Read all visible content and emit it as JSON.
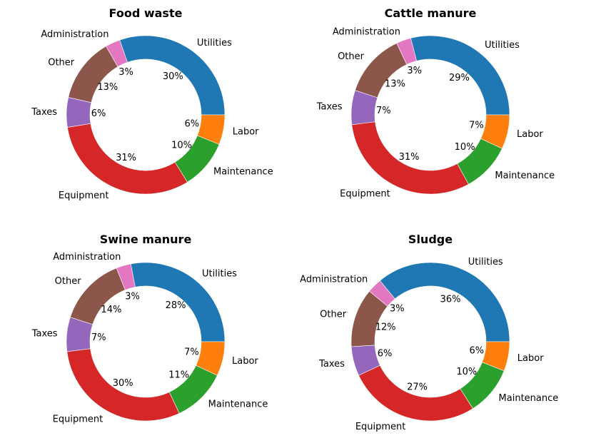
{
  "chart_data": [
    {
      "type": "pie",
      "title": "Food waste",
      "categories": [
        "Utilities",
        "Administration",
        "Other",
        "Taxes",
        "Equipment",
        "Maintenance",
        "Labor"
      ],
      "values": [
        30,
        3,
        13,
        6,
        31,
        10,
        6
      ],
      "value_labels": [
        "30%",
        "3%",
        "13%",
        "6%",
        "31%",
        "10%",
        "6%"
      ],
      "colors": [
        "#1f77b4",
        "#e377c2",
        "#8c564b",
        "#9467bd",
        "#d62728",
        "#2ca02c",
        "#ff7f0e"
      ],
      "donut": true
    },
    {
      "type": "pie",
      "title": "Cattle manure",
      "categories": [
        "Utilities",
        "Administration",
        "Other",
        "Taxes",
        "Equipment",
        "Maintenance",
        "Labor"
      ],
      "values": [
        29,
        3,
        13,
        7,
        31,
        10,
        7
      ],
      "value_labels": [
        "29%",
        "3%",
        "13%",
        "7%",
        "31%",
        "10%",
        "7%"
      ],
      "colors": [
        "#1f77b4",
        "#e377c2",
        "#8c564b",
        "#9467bd",
        "#d62728",
        "#2ca02c",
        "#ff7f0e"
      ],
      "donut": true
    },
    {
      "type": "pie",
      "title": "Swine manure",
      "categories": [
        "Utilities",
        "Administration",
        "Other",
        "Taxes",
        "Equipment",
        "Maintenance",
        "Labor"
      ],
      "values": [
        28,
        3,
        14,
        7,
        30,
        11,
        7
      ],
      "value_labels": [
        "28%",
        "3%",
        "14%",
        "7%",
        "30%",
        "11%",
        "7%"
      ],
      "colors": [
        "#1f77b4",
        "#e377c2",
        "#8c564b",
        "#9467bd",
        "#d62728",
        "#2ca02c",
        "#ff7f0e"
      ],
      "donut": true
    },
    {
      "type": "pie",
      "title": "Sludge",
      "categories": [
        "Utilities",
        "Administration",
        "Other",
        "Taxes",
        "Equipment",
        "Maintenance",
        "Labor"
      ],
      "values": [
        36,
        3,
        12,
        6,
        27,
        10,
        6
      ],
      "value_labels": [
        "36%",
        "3%",
        "12%",
        "6%",
        "27%",
        "10%",
        "6%"
      ],
      "colors": [
        "#1f77b4",
        "#e377c2",
        "#8c564b",
        "#9467bd",
        "#d62728",
        "#2ca02c",
        "#ff7f0e"
      ],
      "donut": true
    }
  ]
}
